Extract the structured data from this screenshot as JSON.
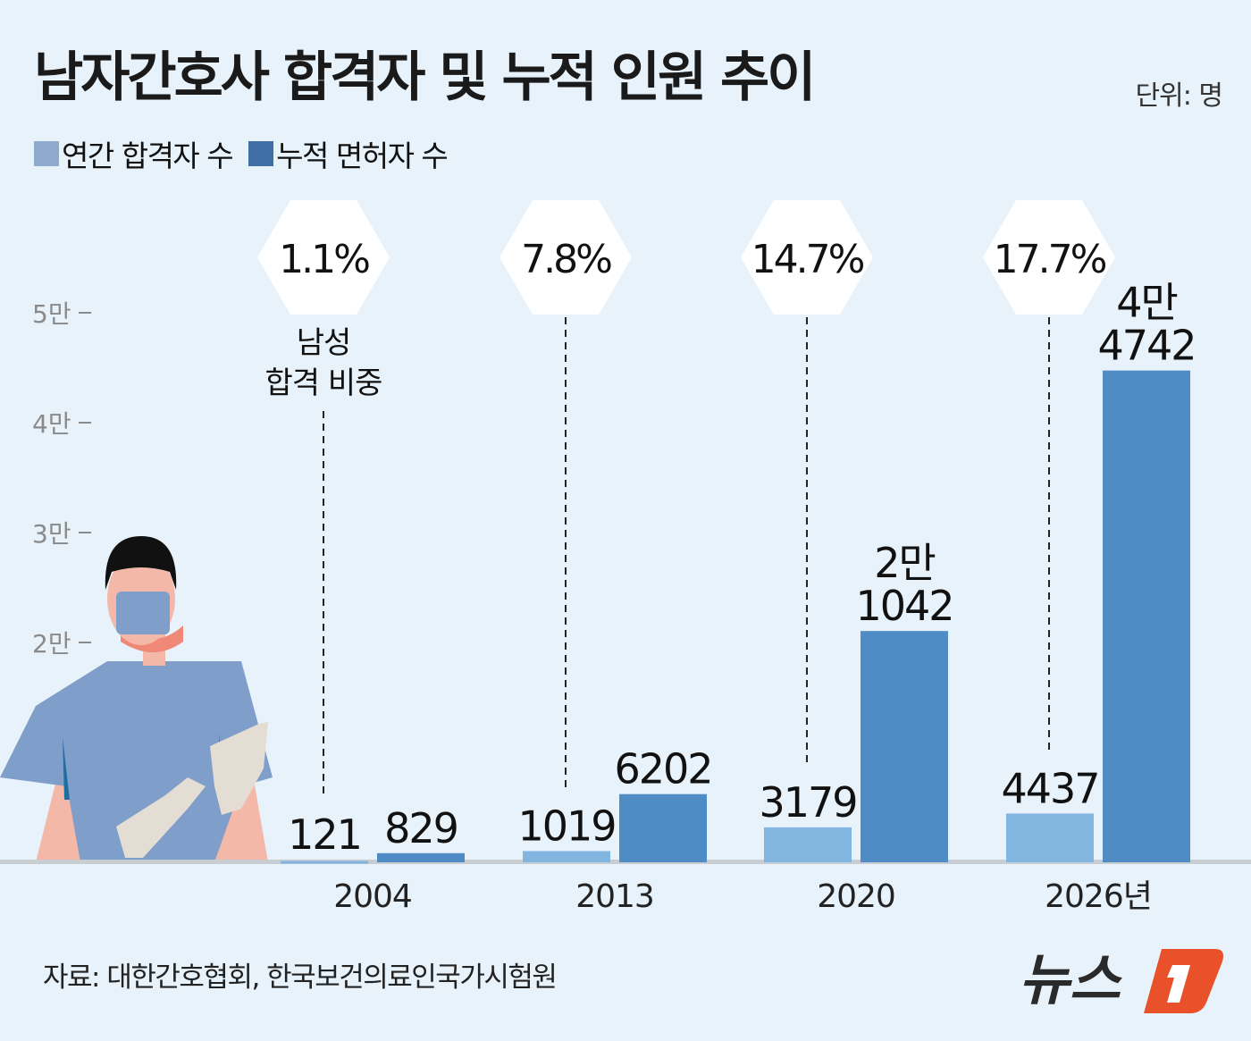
{
  "title": "남자간호사 합격자 및 누적 인원 추이",
  "unit": "단위: 명",
  "legend": [
    {
      "label": "연간 합격자 수",
      "color": "#8fa9cf"
    },
    {
      "label": "누적 면허자 수",
      "color": "#3f6ea4"
    }
  ],
  "source": "자료: 대한간호협회, 한국보건의료인국가시험원",
  "logo": "뉴스1",
  "chart_data": {
    "type": "bar",
    "categories": [
      "2004",
      "2013",
      "2020",
      "2026년"
    ],
    "ylim": [
      0,
      50000
    ],
    "yticks": [
      {
        "value": 20000,
        "label": "2만"
      },
      {
        "value": 30000,
        "label": "3만"
      },
      {
        "value": 40000,
        "label": "4만"
      },
      {
        "value": 50000,
        "label": "5만"
      }
    ],
    "series": [
      {
        "name": "연간 합격자 수",
        "color": "#82b5e0",
        "values": [
          121,
          1019,
          3179,
          4437
        ],
        "labels": [
          [
            "121"
          ],
          [
            "1019"
          ],
          [
            "3179"
          ],
          [
            "4437"
          ]
        ]
      },
      {
        "name": "누적 면허자 수",
        "color": "#4f8cc6",
        "values": [
          829,
          6202,
          21042,
          44742
        ],
        "labels": [
          [
            "829"
          ],
          [
            "6202"
          ],
          [
            "2만",
            "1042"
          ],
          [
            "4만",
            "4742"
          ]
        ]
      }
    ],
    "male_ratio": {
      "label": [
        "남성",
        "합격 비중"
      ],
      "values": [
        "1.1%",
        "7.8%",
        "14.7%",
        "17.7%"
      ]
    }
  }
}
